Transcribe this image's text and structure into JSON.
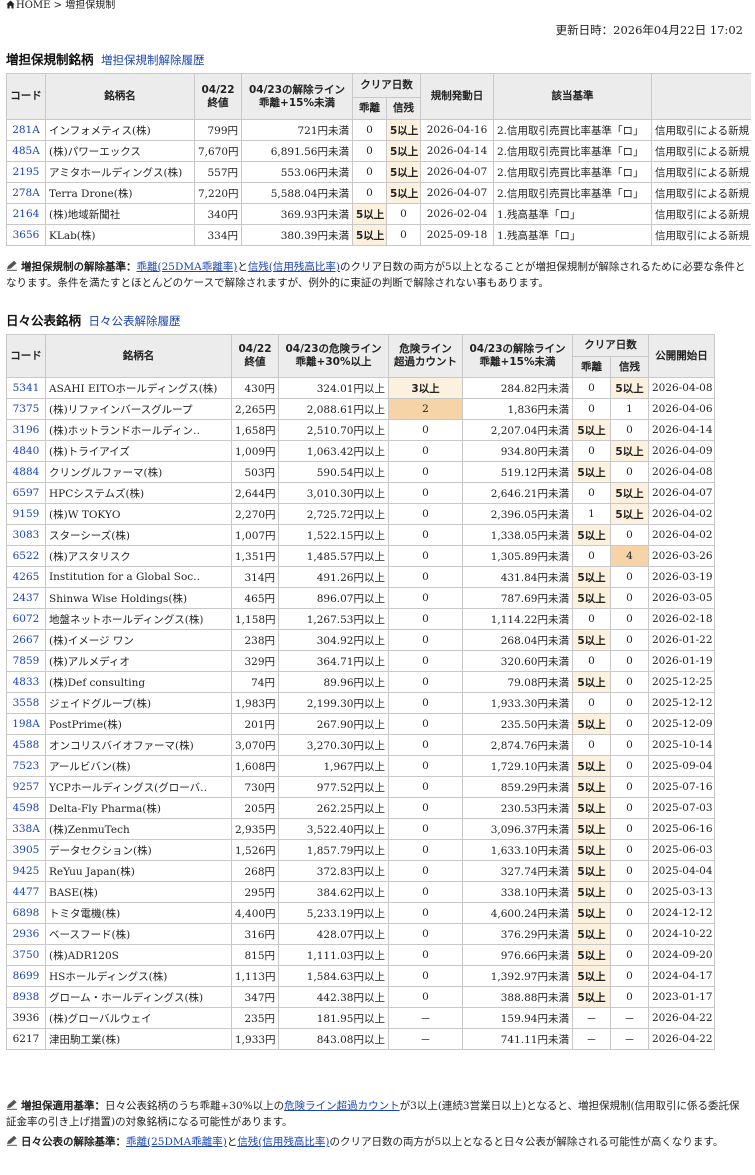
{
  "breadcrumb": {
    "home": "HOME",
    "sep": ">",
    "current": "増担保規制"
  },
  "updated": "更新日時：2026年04月22日 17:02",
  "section1": {
    "title": "増担保規制銘柄",
    "link": "増担保規制解除履歴",
    "headers": {
      "code": "コード",
      "name": "銘柄名",
      "close_date": "04/22",
      "close": "終値",
      "release_line": "04/23の解除ライン",
      "release_line_sub": "乖離+15%未満",
      "clear_days": "クリア日数",
      "deviation": "乖離",
      "credit": "信残",
      "start": "規制発動日",
      "criteria": "該当基準"
    },
    "rows": [
      {
        "code": "281A",
        "name": "インフォメティス(株)",
        "close": "799円",
        "line": "721円未満",
        "dev": "0",
        "credit": "5以上",
        "start": "2026-04-16",
        "criteria": "2.信用取引売買比率基準「ロ」",
        "extra": "信用取引による新規"
      },
      {
        "code": "485A",
        "name": "(株)パワーエックス",
        "close": "7,670円",
        "line": "6,891.56円未満",
        "dev": "0",
        "credit": "5以上",
        "start": "2026-04-14",
        "criteria": "2.信用取引売買比率基準「ロ」",
        "extra": "信用取引による新規"
      },
      {
        "code": "2195",
        "name": "アミタホールディングス(株)",
        "close": "557円",
        "line": "553.06円未満",
        "dev": "0",
        "credit": "5以上",
        "start": "2026-04-07",
        "criteria": "2.信用取引売買比率基準「ロ」",
        "extra": "信用取引による新規"
      },
      {
        "code": "278A",
        "name": "Terra Drone(株)",
        "close": "7,220円",
        "line": "5,588.04円未満",
        "dev": "0",
        "credit": "5以上",
        "start": "2026-04-07",
        "criteria": "2.信用取引売買比率基準「ロ」",
        "extra": "信用取引による新規"
      },
      {
        "code": "2164",
        "name": "(株)地域新聞社",
        "close": "340円",
        "line": "369.93円未満",
        "dev": "5以上",
        "credit": "0",
        "start": "2026-02-04",
        "criteria": "1.残高基準「ロ」",
        "extra": "信用取引による新規"
      },
      {
        "code": "3656",
        "name": "KLab(株)",
        "close": "334円",
        "line": "380.39円未満",
        "dev": "5以上",
        "credit": "0",
        "start": "2025-09-18",
        "criteria": "1.残高基準「ロ」",
        "extra": "信用取引による新規"
      }
    ],
    "note": {
      "label": "増担保規制の解除基準：",
      "link1": "乖離(25DMA乖離率)",
      "mid": "と",
      "link2": "信残(信用残高比率)",
      "rest": "のクリア日数の両方が5以上となることが増担保規制が解除されるために必要な条件となります。条件を満たすとほとんどのケースで解除されますが、例外的に東証の判断で解除されない事もあります。"
    }
  },
  "section2": {
    "title": "日々公表銘柄",
    "link": "日々公表解除履歴",
    "headers": {
      "code": "コード",
      "name": "銘柄名",
      "close_date": "04/22",
      "close": "終値",
      "danger_line": "04/23の危険ライン",
      "danger_line_sub": "乖離+30%以上",
      "danger_count": "危険ライン",
      "danger_count_sub": "超過カウント",
      "release_line": "04/23の解除ライン",
      "release_line_sub": "乖離+15%未満",
      "clear_days": "クリア日数",
      "deviation": "乖離",
      "credit": "信残",
      "start": "公開開始日"
    },
    "rows": [
      {
        "code": "5341",
        "name": "ASAHI EITOホールディングス(株)",
        "close": "430円",
        "danger": "324.01円以上",
        "count": "3以上",
        "release": "284.82円未満",
        "dev": "0",
        "credit": "5以上",
        "start": "2026-04-08"
      },
      {
        "code": "7375",
        "name": "(株)リファインバースグループ",
        "close": "2,265円",
        "danger": "2,088.61円以上",
        "count": "2",
        "release": "1,836円未満",
        "dev": "0",
        "credit": "1",
        "start": "2026-04-06"
      },
      {
        "code": "3196",
        "name": "(株)ホットランドホールディン‥",
        "close": "1,658円",
        "danger": "2,510.70円以上",
        "count": "0",
        "release": "2,207.04円未満",
        "dev": "5以上",
        "credit": "0",
        "start": "2026-04-14"
      },
      {
        "code": "4840",
        "name": "(株)トライアイズ",
        "close": "1,009円",
        "danger": "1,063.42円以上",
        "count": "0",
        "release": "934.80円未満",
        "dev": "0",
        "credit": "5以上",
        "start": "2026-04-09"
      },
      {
        "code": "4884",
        "name": "クリングルファーマ(株)",
        "close": "503円",
        "danger": "590.54円以上",
        "count": "0",
        "release": "519.12円未満",
        "dev": "5以上",
        "credit": "0",
        "start": "2026-04-08"
      },
      {
        "code": "6597",
        "name": "HPCシステムズ(株)",
        "close": "2,644円",
        "danger": "3,010.30円以上",
        "count": "0",
        "release": "2,646.21円未満",
        "dev": "0",
        "credit": "5以上",
        "start": "2026-04-07"
      },
      {
        "code": "9159",
        "name": "(株)W TOKYO",
        "close": "2,270円",
        "danger": "2,725.72円以上",
        "count": "0",
        "release": "2,396.05円未満",
        "dev": "1",
        "credit": "5以上",
        "start": "2026-04-02"
      },
      {
        "code": "3083",
        "name": "スターシーズ(株)",
        "close": "1,007円",
        "danger": "1,522.15円以上",
        "count": "0",
        "release": "1,338.05円未満",
        "dev": "5以上",
        "credit": "0",
        "start": "2026-04-02"
      },
      {
        "code": "6522",
        "name": "(株)アスタリスク",
        "close": "1,351円",
        "danger": "1,485.57円以上",
        "count": "0",
        "release": "1,305.89円未満",
        "dev": "0",
        "credit": "4",
        "start": "2026-03-26"
      },
      {
        "code": "4265",
        "name": "Institution for a Global Soc‥",
        "close": "314円",
        "danger": "491.26円以上",
        "count": "0",
        "release": "431.84円未満",
        "dev": "5以上",
        "credit": "0",
        "start": "2026-03-19"
      },
      {
        "code": "2437",
        "name": "Shinwa Wise Holdings(株)",
        "close": "465円",
        "danger": "896.07円以上",
        "count": "0",
        "release": "787.69円未満",
        "dev": "5以上",
        "credit": "0",
        "start": "2026-03-05"
      },
      {
        "code": "6072",
        "name": "地盤ネットホールディングス(株)",
        "close": "1,158円",
        "danger": "1,267.53円以上",
        "count": "0",
        "release": "1,114.22円未満",
        "dev": "0",
        "credit": "0",
        "start": "2026-02-18"
      },
      {
        "code": "2667",
        "name": "(株)イメージ ワン",
        "close": "238円",
        "danger": "304.92円以上",
        "count": "0",
        "release": "268.04円未満",
        "dev": "5以上",
        "credit": "0",
        "start": "2026-01-22"
      },
      {
        "code": "7859",
        "name": "(株)アルメディオ",
        "close": "329円",
        "danger": "364.71円以上",
        "count": "0",
        "release": "320.60円未満",
        "dev": "0",
        "credit": "0",
        "start": "2026-01-19"
      },
      {
        "code": "4833",
        "name": "(株)Def consulting",
        "close": "74円",
        "danger": "89.96円以上",
        "count": "0",
        "release": "79.08円未満",
        "dev": "5以上",
        "credit": "0",
        "start": "2025-12-25"
      },
      {
        "code": "3558",
        "name": "ジェイドグループ(株)",
        "close": "1,983円",
        "danger": "2,199.30円以上",
        "count": "0",
        "release": "1,933.30円未満",
        "dev": "0",
        "credit": "0",
        "start": "2025-12-12"
      },
      {
        "code": "198A",
        "name": "PostPrime(株)",
        "close": "201円",
        "danger": "267.90円以上",
        "count": "0",
        "release": "235.50円未満",
        "dev": "5以上",
        "credit": "0",
        "start": "2025-12-09"
      },
      {
        "code": "4588",
        "name": "オンコリスバイオファーマ(株)",
        "close": "3,070円",
        "danger": "3,270.30円以上",
        "count": "0",
        "release": "2,874.76円未満",
        "dev": "0",
        "credit": "0",
        "start": "2025-10-14"
      },
      {
        "code": "7523",
        "name": "アールビバン(株)",
        "close": "1,608円",
        "danger": "1,967円以上",
        "count": "0",
        "release": "1,729.10円未満",
        "dev": "5以上",
        "credit": "0",
        "start": "2025-09-04"
      },
      {
        "code": "9257",
        "name": "YCPホールディングス(グローバ‥",
        "close": "730円",
        "danger": "977.52円以上",
        "count": "0",
        "release": "859.29円未満",
        "dev": "5以上",
        "credit": "0",
        "start": "2025-07-16"
      },
      {
        "code": "4598",
        "name": "Delta-Fly Pharma(株)",
        "close": "205円",
        "danger": "262.25円以上",
        "count": "0",
        "release": "230.53円未満",
        "dev": "5以上",
        "credit": "0",
        "start": "2025-07-03"
      },
      {
        "code": "338A",
        "name": "(株)ZenmuTech",
        "close": "2,935円",
        "danger": "3,522.40円以上",
        "count": "0",
        "release": "3,096.37円未満",
        "dev": "5以上",
        "credit": "0",
        "start": "2025-06-16"
      },
      {
        "code": "3905",
        "name": "データセクション(株)",
        "close": "1,526円",
        "danger": "1,857.79円以上",
        "count": "0",
        "release": "1,633.10円未満",
        "dev": "5以上",
        "credit": "0",
        "start": "2025-06-03"
      },
      {
        "code": "9425",
        "name": "ReYuu Japan(株)",
        "close": "268円",
        "danger": "372.83円以上",
        "count": "0",
        "release": "327.74円未満",
        "dev": "5以上",
        "credit": "0",
        "start": "2025-04-04"
      },
      {
        "code": "4477",
        "name": "BASE(株)",
        "close": "295円",
        "danger": "384.62円以上",
        "count": "0",
        "release": "338.10円未満",
        "dev": "5以上",
        "credit": "0",
        "start": "2025-03-13"
      },
      {
        "code": "6898",
        "name": "トミタ電機(株)",
        "close": "4,400円",
        "danger": "5,233.19円以上",
        "count": "0",
        "release": "4,600.24円未満",
        "dev": "5以上",
        "credit": "0",
        "start": "2024-12-12"
      },
      {
        "code": "2936",
        "name": "ベースフード(株)",
        "close": "316円",
        "danger": "428.07円以上",
        "count": "0",
        "release": "376.29円未満",
        "dev": "5以上",
        "credit": "0",
        "start": "2024-10-22"
      },
      {
        "code": "3750",
        "name": "(株)ADR120S",
        "close": "815円",
        "danger": "1,111.03円以上",
        "count": "0",
        "release": "976.66円未満",
        "dev": "5以上",
        "credit": "0",
        "start": "2024-09-20"
      },
      {
        "code": "8699",
        "name": "HSホールディングス(株)",
        "close": "1,113円",
        "danger": "1,584.63円以上",
        "count": "0",
        "release": "1,392.97円未満",
        "dev": "5以上",
        "credit": "0",
        "start": "2024-04-17"
      },
      {
        "code": "8938",
        "name": "グローム・ホールディングス(株)",
        "close": "347円",
        "danger": "442.38円以上",
        "count": "0",
        "release": "388.88円未満",
        "dev": "5以上",
        "credit": "0",
        "start": "2023-01-17"
      },
      {
        "code": "3936",
        "name": "(株)グローバルウェイ",
        "close": "235円",
        "danger": "181.95円以上",
        "count": "－",
        "release": "159.94円未満",
        "dev": "－",
        "credit": "－",
        "start": "2026-04-22",
        "nolink": true
      },
      {
        "code": "6217",
        "name": "津田駒工業(株)",
        "close": "1,933円",
        "danger": "843.08円以上",
        "count": "－",
        "release": "741.11円未満",
        "dev": "－",
        "credit": "－",
        "start": "2026-04-22",
        "nolink": true
      }
    ],
    "note1": {
      "label": "増担保適用基準：",
      "pre": "日々公表銘柄のうち乖離+30%以上の",
      "link": "危険ライン超過カウント",
      "rest": "が3以上(連続3営業日以上)となると、増担保規制(信用取引に係る委託保証金率の引き上げ措置)の対象銘柄になる可能性があります。"
    },
    "note2": {
      "label": "日々公表の解除基準：",
      "link1": "乖離(25DMA乖離率)",
      "mid": "と",
      "link2": "信残(信用残高比率)",
      "rest": "のクリア日数の両方が5以上となると日々公表が解除される可能性が高くなります。"
    }
  }
}
